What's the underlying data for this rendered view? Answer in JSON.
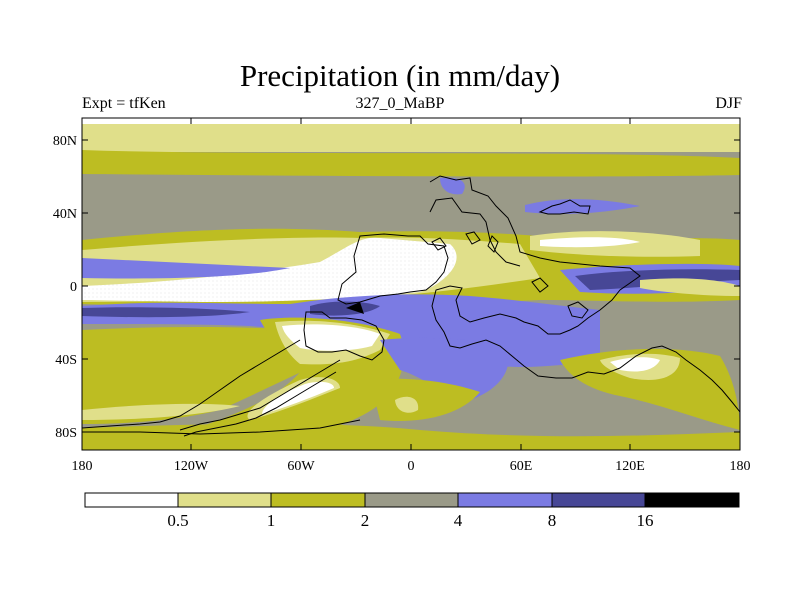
{
  "title": "Precipitation (in mm/day)",
  "subtitle_left": "Expt = tfKen",
  "subtitle_center": "327_0_MaBP",
  "subtitle_right": "DJF",
  "lat_labels": [
    "80N",
    "40N",
    "0",
    "40S",
    "80S"
  ],
  "lon_labels": [
    "180",
    "120W",
    "60W",
    "0",
    "60E",
    "120E",
    "180"
  ],
  "colorbar": {
    "labels": [
      "0.5",
      "1",
      "2",
      "4",
      "8",
      "16"
    ],
    "colors": [
      "#ffffff",
      "#e0df8a",
      "#bdbd22",
      "#9a9a88",
      "#7b7be3",
      "#474796",
      "#000000"
    ]
  },
  "palette": {
    "white": "#ffffff",
    "pale": "#e0df8a",
    "olive": "#bdbd22",
    "gray": "#9a9a88",
    "blue": "#7b7be3",
    "navy": "#474796",
    "black": "#000000",
    "outline": "#000000"
  }
}
